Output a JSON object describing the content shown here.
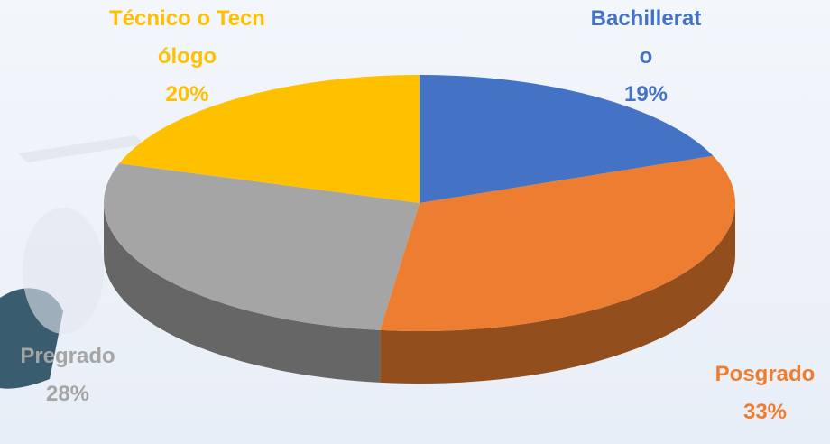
{
  "chart_data": {
    "type": "pie",
    "categories": [
      "Bachillerato",
      "Posgrado",
      "Pregrado",
      "Técnico o Tecnólogo"
    ],
    "values": [
      19,
      33,
      28,
      20
    ],
    "value_labels": [
      "19%",
      "33%",
      "28%",
      "20%"
    ],
    "colors": [
      "#4472c4",
      "#ed7d31",
      "#a5a5a5",
      "#ffc000"
    ],
    "label_colors": [
      "#4472c4",
      "#ed7d31",
      "#a5a5a5",
      "#ffc000"
    ]
  }
}
